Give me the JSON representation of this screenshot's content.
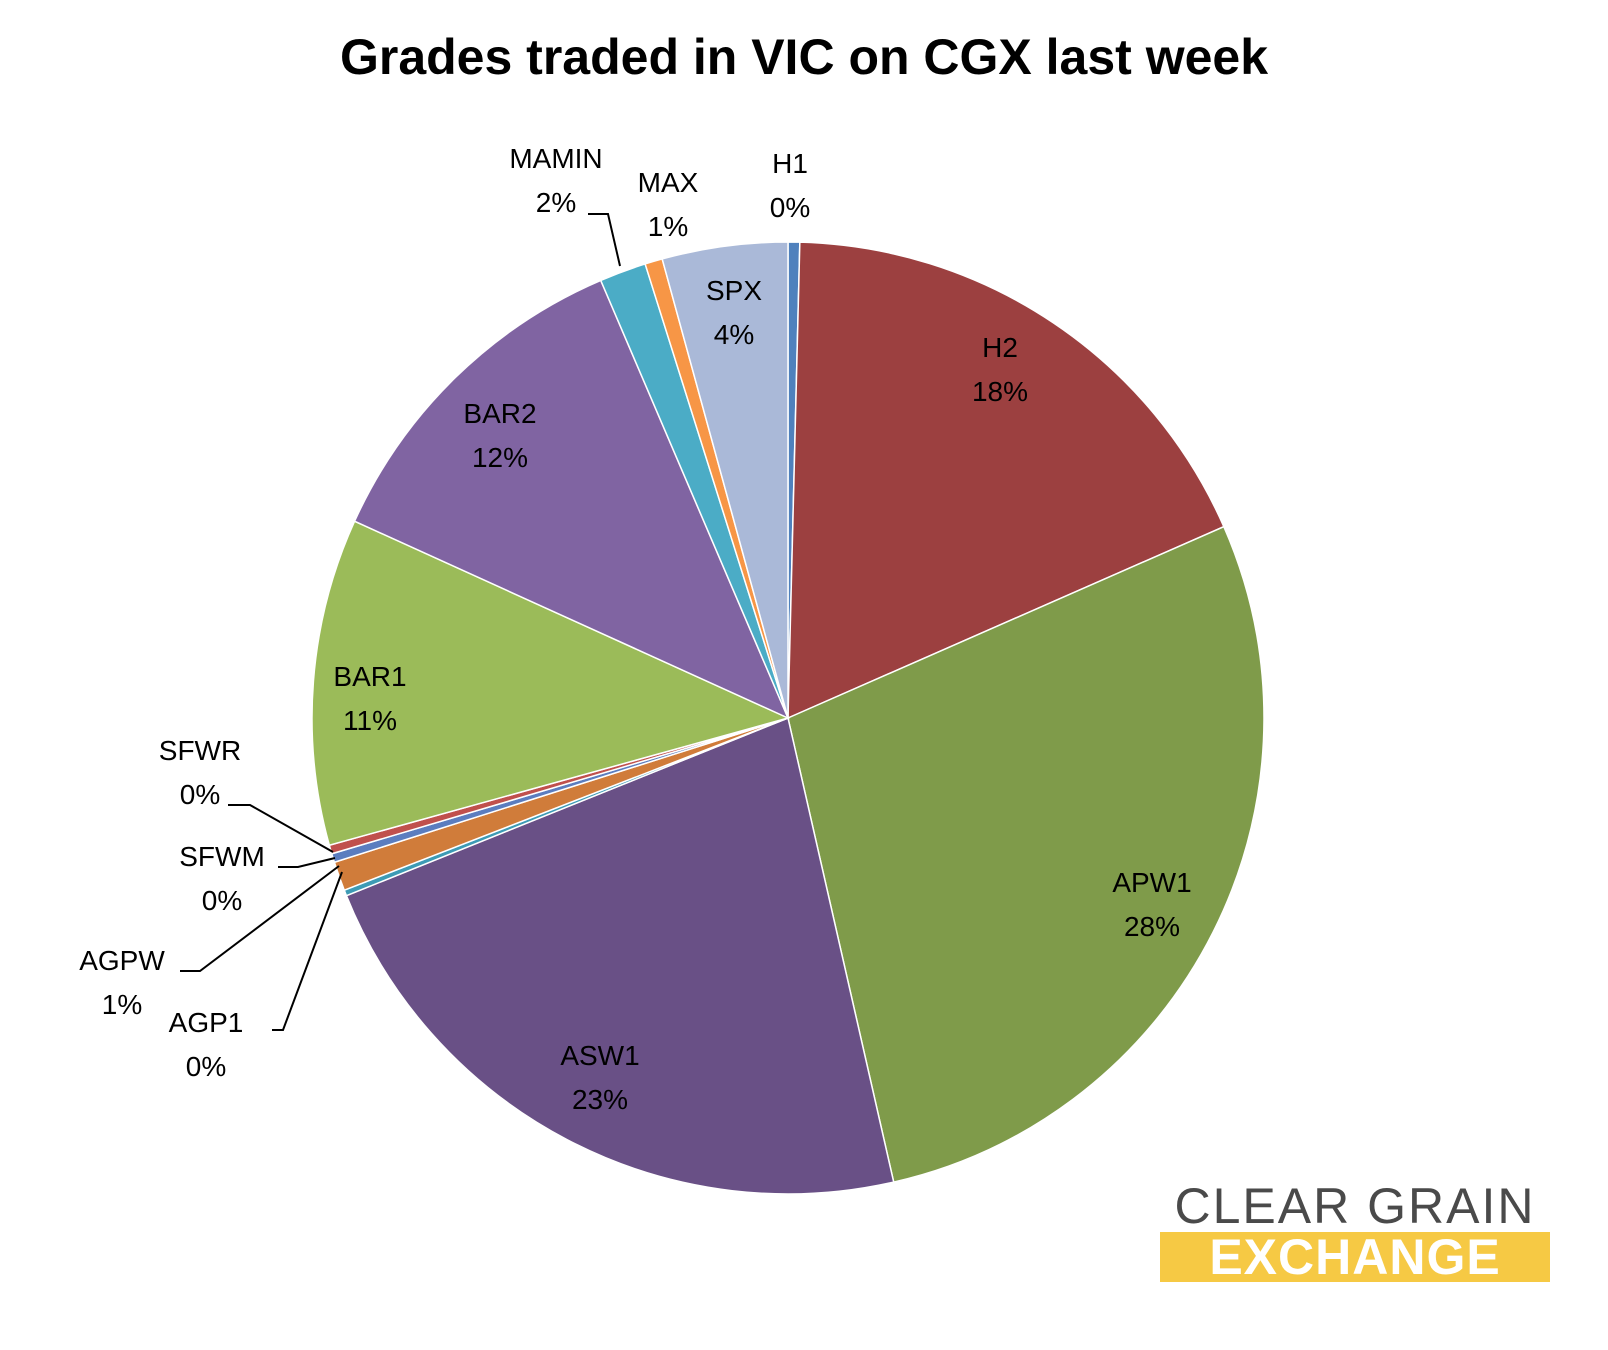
{
  "chart_data": {
    "type": "pie",
    "title": "Grades traded in VIC on CGX last week",
    "slices": [
      {
        "label": "H1",
        "percent_label": "0%",
        "value": 0.4,
        "color": "#4f81bd"
      },
      {
        "label": "H2",
        "percent_label": "18%",
        "value": 18.2,
        "color": "#9c4040"
      },
      {
        "label": "APW1",
        "percent_label": "28%",
        "value": 28.3,
        "color": "#7f9b4a"
      },
      {
        "label": "ASW1",
        "percent_label": "23%",
        "value": 22.7,
        "color": "#695086"
      },
      {
        "label": "AGP1",
        "percent_label": "0%",
        "value": 0.2,
        "color": "#3d9bb5"
      },
      {
        "label": "AGPW",
        "percent_label": "1%",
        "value": 1.0,
        "color": "#d07c3a"
      },
      {
        "label": "SFWM",
        "percent_label": "0%",
        "value": 0.3,
        "color": "#5b7dbf"
      },
      {
        "label": "SFWR",
        "percent_label": "0%",
        "value": 0.3,
        "color": "#c0504d"
      },
      {
        "label": "BAR1",
        "percent_label": "11%",
        "value": 11.2,
        "color": "#9bbb59"
      },
      {
        "label": "BAR2",
        "percent_label": "12%",
        "value": 11.9,
        "color": "#8064a2"
      },
      {
        "label": "MAMIN",
        "percent_label": "2%",
        "value": 1.6,
        "color": "#4bacc6"
      },
      {
        "label": "MAX",
        "percent_label": "1%",
        "value": 0.6,
        "color": "#f79646"
      },
      {
        "label": "SPX",
        "percent_label": "4%",
        "value": 4.3,
        "color": "#aab9d8"
      }
    ]
  },
  "logo": {
    "line1": "CLEAR GRAIN",
    "line2": "EXCHANGE",
    "text_color": "#4a4a4a",
    "band_color": "#f6c944"
  }
}
